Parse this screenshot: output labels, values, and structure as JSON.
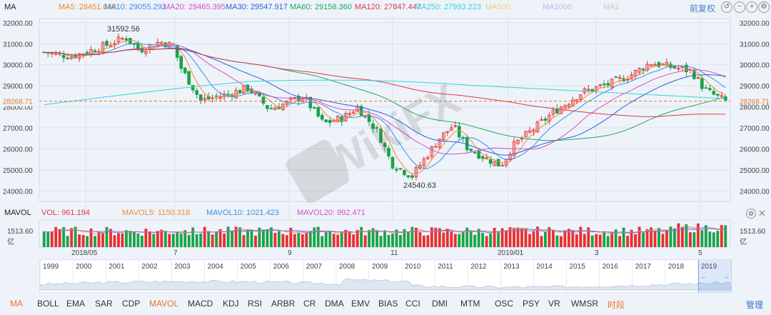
{
  "ma_header": {
    "title": "MA",
    "items": [
      {
        "label": "MA5: 28451.048",
        "color": "#f08a2e"
      },
      {
        "label": "MA10: 29055.292",
        "color": "#3a8ee6"
      },
      {
        "label": "MA20: 29465.395",
        "color": "#d94fc4"
      },
      {
        "label": "MA30: 29547.917",
        "color": "#2e5fcf"
      },
      {
        "label": "MA60: 29158.360",
        "color": "#1fa85f"
      },
      {
        "label": "MA120: 27847.447",
        "color": "#e0384a"
      },
      {
        "label": "MA250: 27993.223",
        "color": "#33d6d2"
      },
      {
        "label": "MA500",
        "color": "#e8d27a"
      },
      {
        "label": "MA1000",
        "color": "#c9b3ea"
      },
      {
        "label": "MA1",
        "color": "#c9c9c9"
      }
    ],
    "tools": {
      "adjust": "前复权"
    }
  },
  "vol_header": {
    "title": "MAVOL",
    "items": [
      {
        "label": "VOL: 961.194",
        "color": "#e0384a"
      },
      {
        "label": "MAVOL5: 1150.318",
        "color": "#f08a2e"
      },
      {
        "label": "MAVOL10: 1021.423",
        "color": "#3a8ee6"
      },
      {
        "label": "MAVOL20: 992.471",
        "color": "#d94fc4"
      }
    ]
  },
  "colors": {
    "up": "#e8302f",
    "down": "#1aa34a",
    "current": "#e8742a",
    "grid": "#d7e1ee"
  },
  "watermark": "WikiFX",
  "chart_data": [
    {
      "type": "candlestick",
      "name": "MA",
      "y_ticks": [
        "32000.00",
        "31000.00",
        "30000.00",
        "29000.00",
        "28000.00",
        "27000.00",
        "26000.00",
        "25000.00",
        "24000.00"
      ],
      "ylim": [
        23500,
        32200
      ],
      "x_ticks": [
        "2018/05",
        "7",
        "9",
        "11",
        "2019/01",
        "3",
        "5"
      ],
      "annotations": {
        "high": "31592.56",
        "low": "24540.63",
        "current": "28268.71"
      },
      "approx_close_path": [
        {
          "t": 0,
          "v": 30600
        },
        {
          "t": 0.04,
          "v": 30400
        },
        {
          "t": 0.08,
          "v": 30800
        },
        {
          "t": 0.12,
          "v": 31300
        },
        {
          "t": 0.14,
          "v": 30700
        },
        {
          "t": 0.17,
          "v": 31100
        },
        {
          "t": 0.19,
          "v": 30900
        },
        {
          "t": 0.2,
          "v": 29900
        },
        {
          "t": 0.23,
          "v": 28300
        },
        {
          "t": 0.27,
          "v": 28600
        },
        {
          "t": 0.3,
          "v": 28900
        },
        {
          "t": 0.33,
          "v": 27900
        },
        {
          "t": 0.35,
          "v": 28100
        },
        {
          "t": 0.38,
          "v": 28500
        },
        {
          "t": 0.41,
          "v": 27200
        },
        {
          "t": 0.44,
          "v": 27500
        },
        {
          "t": 0.46,
          "v": 28000
        },
        {
          "t": 0.49,
          "v": 26800
        },
        {
          "t": 0.51,
          "v": 25300
        },
        {
          "t": 0.54,
          "v": 24700
        },
        {
          "t": 0.56,
          "v": 25600
        },
        {
          "t": 0.58,
          "v": 26500
        },
        {
          "t": 0.6,
          "v": 27100
        },
        {
          "t": 0.62,
          "v": 26100
        },
        {
          "t": 0.64,
          "v": 25700
        },
        {
          "t": 0.67,
          "v": 25200
        },
        {
          "t": 0.69,
          "v": 26200
        },
        {
          "t": 0.72,
          "v": 27000
        },
        {
          "t": 0.75,
          "v": 27800
        },
        {
          "t": 0.79,
          "v": 28700
        },
        {
          "t": 0.83,
          "v": 29100
        },
        {
          "t": 0.86,
          "v": 29500
        },
        {
          "t": 0.89,
          "v": 30100
        },
        {
          "t": 0.92,
          "v": 29900
        },
        {
          "t": 0.95,
          "v": 29700
        },
        {
          "t": 0.97,
          "v": 28800
        },
        {
          "t": 1.0,
          "v": 28268
        }
      ]
    },
    {
      "type": "bar",
      "name": "MAVOL",
      "y_tick": "1513.60",
      "y_unit": "亿"
    }
  ],
  "navigator": {
    "years": [
      "1999",
      "2000",
      "2001",
      "2002",
      "2003",
      "2004",
      "2005",
      "2006",
      "2007",
      "2008",
      "2009",
      "2010",
      "2011",
      "2012",
      "2013",
      "2014",
      "2015",
      "2016",
      "2017",
      "2018",
      "2019"
    ]
  },
  "tabs": [
    "MA",
    "BOLL",
    "EMA",
    "SAR",
    "CDP",
    "MAVOL",
    "MACD",
    "KDJ",
    "RSI",
    "ARBR",
    "CR",
    "DMA",
    "EMV",
    "BIAS",
    "CCI",
    "DMI",
    "MTM",
    "OSC",
    "PSY",
    "VR",
    "WMSR",
    "时段"
  ],
  "active_tabs": [
    "MA",
    "MAVOL"
  ],
  "manage_label": "管理"
}
